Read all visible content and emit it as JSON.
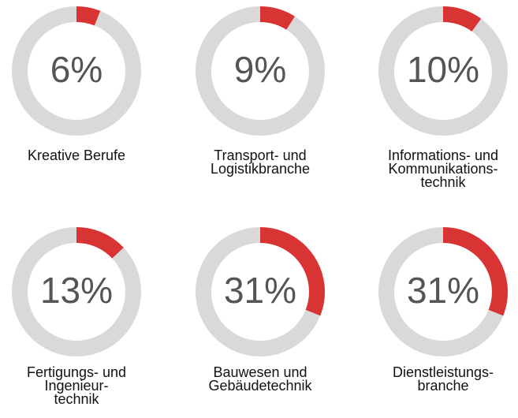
{
  "chart_data": [
    {
      "type": "donut",
      "label": [
        "Kreative Berufe"
      ],
      "values": [
        6
      ],
      "value_labels": [
        "6%"
      ],
      "color": "#d93434",
      "track_color": "#d9d9d9"
    },
    {
      "type": "donut",
      "label": [
        "Transport- und",
        "Logistikbranche"
      ],
      "values": [
        9
      ],
      "value_labels": [
        "9%"
      ],
      "color": "#d93434",
      "track_color": "#d9d9d9"
    },
    {
      "type": "donut",
      "label": [
        "Informations- und",
        "Kommunikations-",
        "technik"
      ],
      "values": [
        10
      ],
      "value_labels": [
        "10%"
      ],
      "color": "#d93434",
      "track_color": "#d9d9d9"
    },
    {
      "type": "donut",
      "label": [
        "Fertigungs- und",
        "Ingenieur-",
        "technik"
      ],
      "values": [
        13
      ],
      "value_labels": [
        "13%"
      ],
      "color": "#d93434",
      "track_color": "#d9d9d9"
    },
    {
      "type": "donut",
      "label": [
        "Bauwesen und",
        "Gebäudetechnik"
      ],
      "values": [
        31
      ],
      "value_labels": [
        "31%"
      ],
      "color": "#d93434",
      "track_color": "#d9d9d9"
    },
    {
      "type": "donut",
      "label": [
        "Dienstleistungs-",
        "branche"
      ],
      "values": [
        31
      ],
      "value_labels": [
        "31%"
      ],
      "color": "#d93434",
      "track_color": "#d9d9d9"
    }
  ]
}
